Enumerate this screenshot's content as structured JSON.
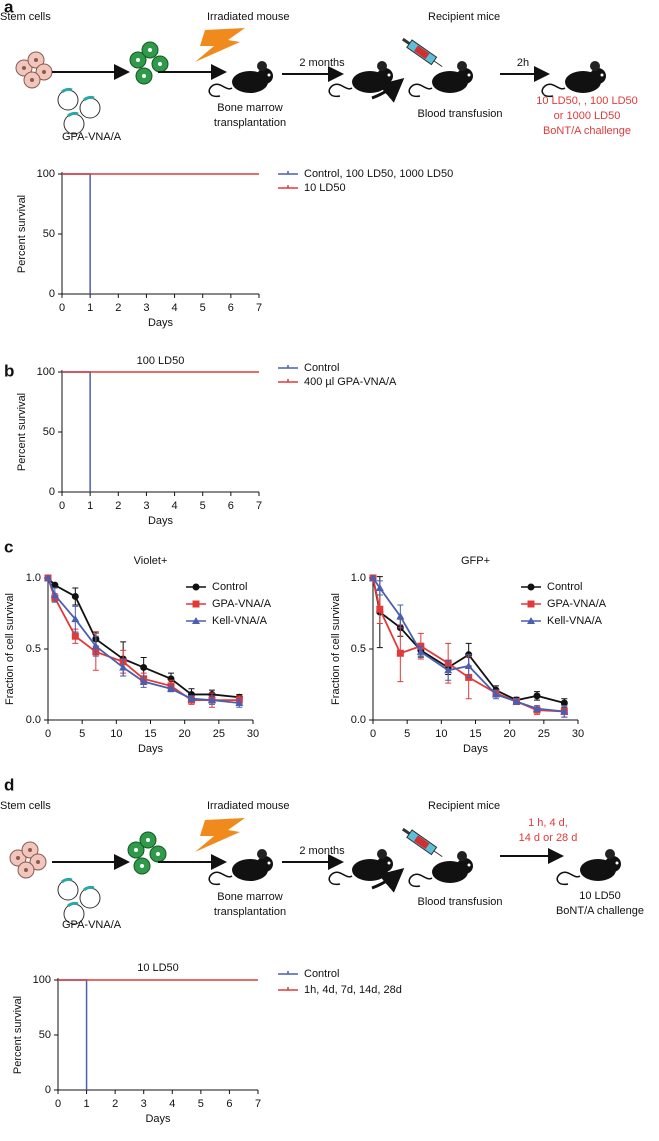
{
  "panels": [
    "a",
    "b",
    "c",
    "d"
  ],
  "diagram_a": {
    "stem_cells": "Stem cells",
    "plasmid": "GPA-VNA/A",
    "irradiated": "Irradiated mouse",
    "transplant": [
      "Bone marrow",
      "transplantation"
    ],
    "wait": "2 months",
    "recipient": "Recipient mice",
    "transfusion": "Blood transfusion",
    "interval": "2h",
    "challenge": [
      "10 LD50, , 100 LD50",
      "or 1000 LD50",
      "BoNT/A challenge"
    ]
  },
  "diagram_d": {
    "stem_cells": "Stem cells",
    "plasmid": "GPA-VNA/A",
    "irradiated": "Irradiated mouse",
    "transplant": [
      "Bone marrow",
      "transplantation"
    ],
    "wait": "2 months",
    "recipient": "Recipient mice",
    "transfusion": "Blood transfusion",
    "interval": [
      "1 h, 4 d,",
      "14 d or 28 d"
    ],
    "challenge": [
      "10 LD50",
      "BoNT/A challenge"
    ]
  },
  "chart_data": [
    {
      "type": "step",
      "xlabel": "Days",
      "ylabel": "Percent survival",
      "xlim": [
        0,
        7
      ],
      "xticks": [
        0,
        1,
        2,
        3,
        4,
        5,
        6,
        7
      ],
      "ylim": [
        0,
        100
      ],
      "yticks": [
        0,
        50,
        100
      ],
      "series": [
        {
          "name": "Control, 100 LD50, 1000 LD50",
          "color": "#4a5fb0",
          "x": [
            0,
            1,
            1
          ],
          "values": [
            100,
            100,
            0
          ]
        },
        {
          "name": "10 LD50",
          "color": "#e03a3a",
          "x": [
            0,
            7
          ],
          "values": [
            100,
            100
          ]
        }
      ]
    },
    {
      "type": "step",
      "title": "100 LD50",
      "xlabel": "Days",
      "ylabel": "Percent survival",
      "xlim": [
        0,
        7
      ],
      "xticks": [
        0,
        1,
        2,
        3,
        4,
        5,
        6,
        7
      ],
      "ylim": [
        0,
        100
      ],
      "yticks": [
        0,
        50,
        100
      ],
      "series": [
        {
          "name": "Control",
          "color": "#4a5fb0",
          "x": [
            0,
            1,
            1
          ],
          "values": [
            100,
            100,
            0
          ]
        },
        {
          "name": "400 µl GPA-VNA/A",
          "color": "#e03a3a",
          "x": [
            0,
            7
          ],
          "values": [
            100,
            100
          ]
        }
      ]
    },
    {
      "type": "line",
      "title": "Violet+",
      "xlabel": "Days",
      "ylabel": "Fraction of cell survival",
      "xlim": [
        0,
        30
      ],
      "xticks": [
        0,
        5,
        10,
        15,
        20,
        25,
        30
      ],
      "ylim": [
        0,
        1
      ],
      "yticks": [
        {
          "value": 0,
          "label": "0.0"
        },
        0.5,
        {
          "value": 1,
          "label": "1.0"
        }
      ],
      "x": [
        0,
        1,
        4,
        7,
        11,
        14,
        18,
        21,
        24,
        28
      ],
      "series": [
        {
          "name": "Control",
          "color": "#111111",
          "marker": "circle",
          "values": [
            1.0,
            0.95,
            0.87,
            0.57,
            0.43,
            0.37,
            0.29,
            0.18,
            0.18,
            0.16
          ],
          "errors": [
            0,
            0,
            0.06,
            0.05,
            0.12,
            0.07,
            0.04,
            0.04,
            0.03,
            0.02
          ]
        },
        {
          "name": "GPA-VNA/A",
          "color": "#e03a3a",
          "marker": "square",
          "values": [
            1.0,
            0.86,
            0.59,
            0.48,
            0.41,
            0.29,
            0.24,
            0.14,
            0.14,
            0.14
          ],
          "errors": [
            0,
            0.03,
            0.05,
            0.13,
            0.08,
            0.04,
            0.04,
            0.03,
            0.05,
            0.03
          ]
        },
        {
          "name": "Kell-VNA/A",
          "color": "#4a5fb0",
          "marker": "triangle",
          "values": [
            1.0,
            0.88,
            0.71,
            0.52,
            0.37,
            0.27,
            0.22,
            0.15,
            0.14,
            0.12
          ],
          "errors": [
            0,
            0.05,
            0.09,
            0.07,
            0.06,
            0.04,
            0.02,
            0.02,
            0.03,
            0.03
          ]
        }
      ]
    },
    {
      "type": "line",
      "title": "GFP+",
      "xlabel": "Days",
      "ylabel": "Fraction of cell survival",
      "xlim": [
        0,
        30
      ],
      "xticks": [
        0,
        5,
        10,
        15,
        20,
        25,
        30
      ],
      "ylim": [
        0,
        1
      ],
      "yticks": [
        {
          "value": 0,
          "label": "0.0"
        },
        0.5,
        {
          "value": 1,
          "label": "1.0"
        }
      ],
      "x": [
        0,
        1,
        4,
        7,
        11,
        14,
        18,
        21,
        24,
        28
      ],
      "series": [
        {
          "name": "Control",
          "color": "#111111",
          "marker": "circle",
          "values": [
            1.0,
            0.76,
            0.65,
            0.49,
            0.37,
            0.46,
            0.21,
            0.14,
            0.17,
            0.12
          ],
          "errors": [
            0,
            0.25,
            0.06,
            0.04,
            0.05,
            0.08,
            0.03,
            0.02,
            0.03,
            0.03
          ]
        },
        {
          "name": "GPA-VNA/A",
          "color": "#e03a3a",
          "marker": "square",
          "values": [
            1.0,
            0.78,
            0.47,
            0.52,
            0.4,
            0.3,
            0.19,
            0.13,
            0.07,
            0.06
          ],
          "errors": [
            0,
            0.1,
            0.2,
            0.09,
            0.14,
            0.15,
            0.02,
            0.02,
            0.03,
            0.04
          ]
        },
        {
          "name": "Kell-VNA/A",
          "color": "#4a5fb0",
          "marker": "triangle",
          "values": [
            1.0,
            0.93,
            0.73,
            0.48,
            0.35,
            0.38,
            0.18,
            0.13,
            0.08,
            0.06
          ],
          "errors": [
            0,
            0.05,
            0.08,
            0.04,
            0.07,
            0.08,
            0.03,
            0.02,
            0.02,
            0.04
          ]
        }
      ]
    },
    {
      "type": "step",
      "title": "10 LD50",
      "xlabel": "Days",
      "ylabel": "Percent survival",
      "xlim": [
        0,
        7
      ],
      "xticks": [
        0,
        1,
        2,
        3,
        4,
        5,
        6,
        7
      ],
      "ylim": [
        0,
        100
      ],
      "yticks": [
        0,
        50,
        100
      ],
      "series": [
        {
          "name": "Control",
          "color": "#4a5fb0",
          "x": [
            0,
            1,
            1
          ],
          "values": [
            100,
            100,
            0
          ]
        },
        {
          "name": "1h, 4d, 7d, 14d, 28d",
          "color": "#e03a3a",
          "x": [
            0,
            7
          ],
          "values": [
            100,
            100
          ]
        }
      ]
    }
  ]
}
